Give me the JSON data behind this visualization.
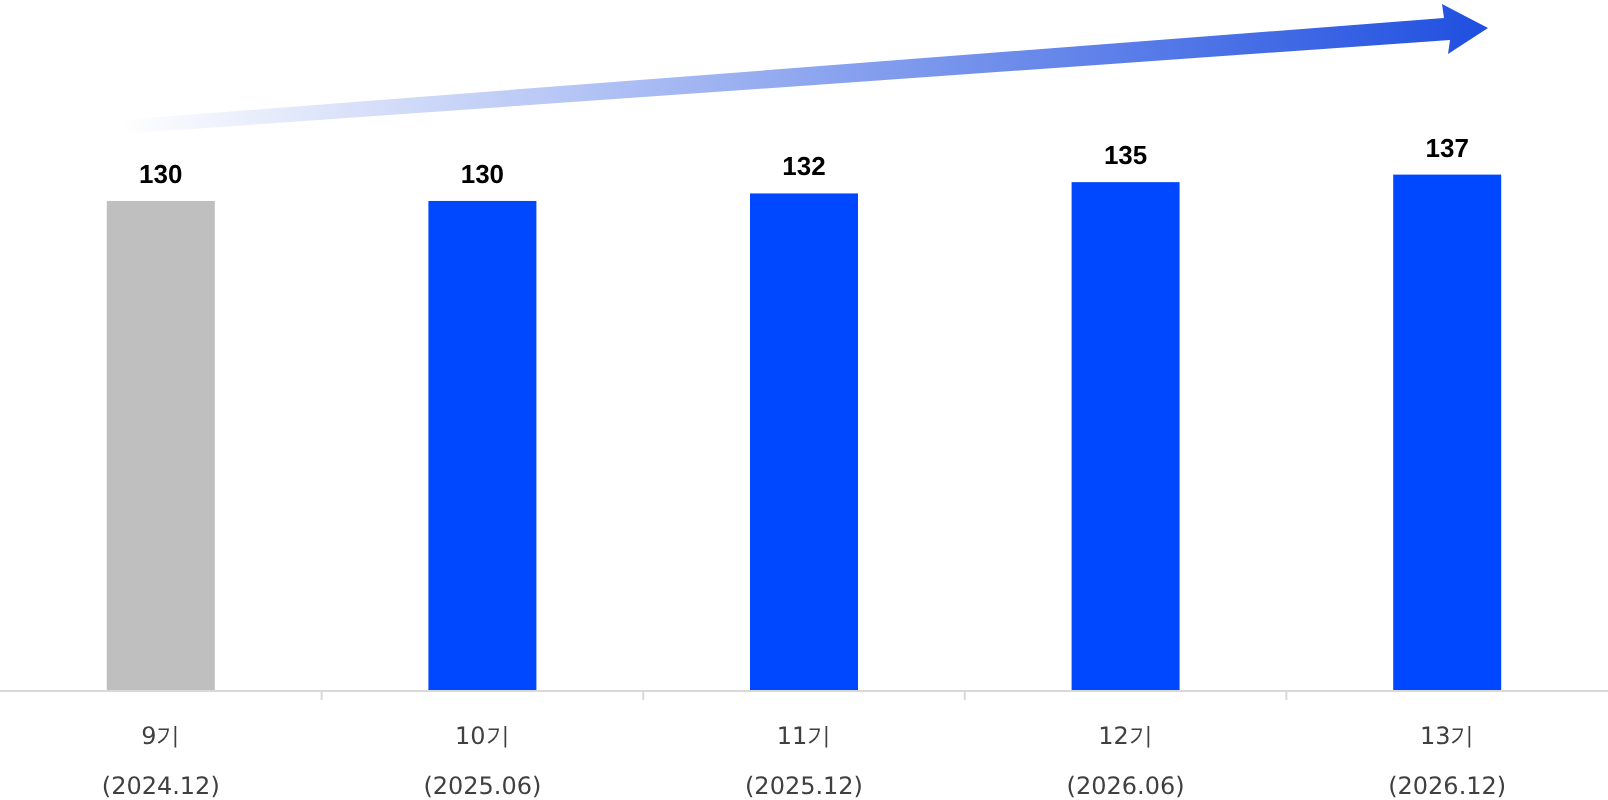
{
  "chart_data": {
    "type": "bar",
    "categories": [
      "9기\n(2024.12)",
      "10기\n(2025.06)",
      "11기\n(2025.12)",
      "12기\n(2026.06)",
      "13기\n(2026.12)"
    ],
    "values": [
      130,
      130,
      132,
      135,
      137
    ],
    "colors": [
      "#bfbfbf",
      "#0048ff",
      "#0048ff",
      "#0048ff",
      "#0048ff"
    ],
    "data_labels": true,
    "tick_labels": "x"
  }
}
